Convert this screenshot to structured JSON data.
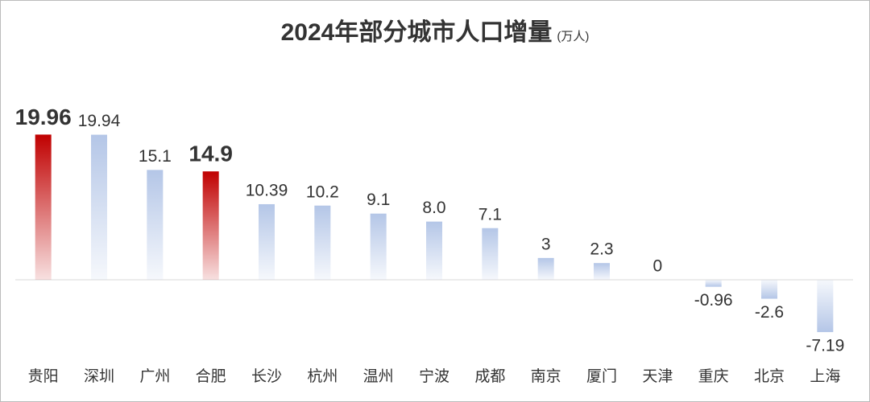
{
  "chart_data": {
    "type": "bar",
    "title": "2024年部分城市人口增量",
    "subtitle": "(万人)",
    "categories": [
      "贵阳",
      "深圳",
      "广州",
      "合肥",
      "长沙",
      "杭州",
      "温州",
      "宁波",
      "成都",
      "南京",
      "厦门",
      "天津",
      "重庆",
      "北京",
      "上海"
    ],
    "values": [
      19.96,
      19.94,
      15.1,
      14.9,
      10.39,
      10.2,
      9.1,
      8.0,
      7.1,
      3,
      2.3,
      0,
      -0.96,
      -2.6,
      -7.19
    ],
    "value_labels": [
      "19.96",
      "19.94",
      "15.1",
      "14.9",
      "10.39",
      "10.2",
      "9.1",
      "8.0",
      "7.1",
      "3",
      "2.3",
      "0",
      "-0.96",
      "-2.6",
      "-7.19"
    ],
    "colors": [
      "#c00000",
      "#b4c6e7",
      "#b4c6e7",
      "#c00000",
      "#b4c6e7",
      "#b4c6e7",
      "#b4c6e7",
      "#b4c6e7",
      "#b4c6e7",
      "#b4c6e7",
      "#b4c6e7",
      "#b4c6e7",
      "#b4c6e7",
      "#b4c6e7",
      "#b4c6e7"
    ],
    "label_colors": [
      "#ff0000",
      "#333333",
      "#333333",
      "#ff0000",
      "#333333",
      "#333333",
      "#333333",
      "#333333",
      "#333333",
      "#333333",
      "#333333",
      "#333333",
      "#333333",
      "#333333",
      "#333333"
    ],
    "ylim": [
      -10,
      20.5
    ]
  }
}
